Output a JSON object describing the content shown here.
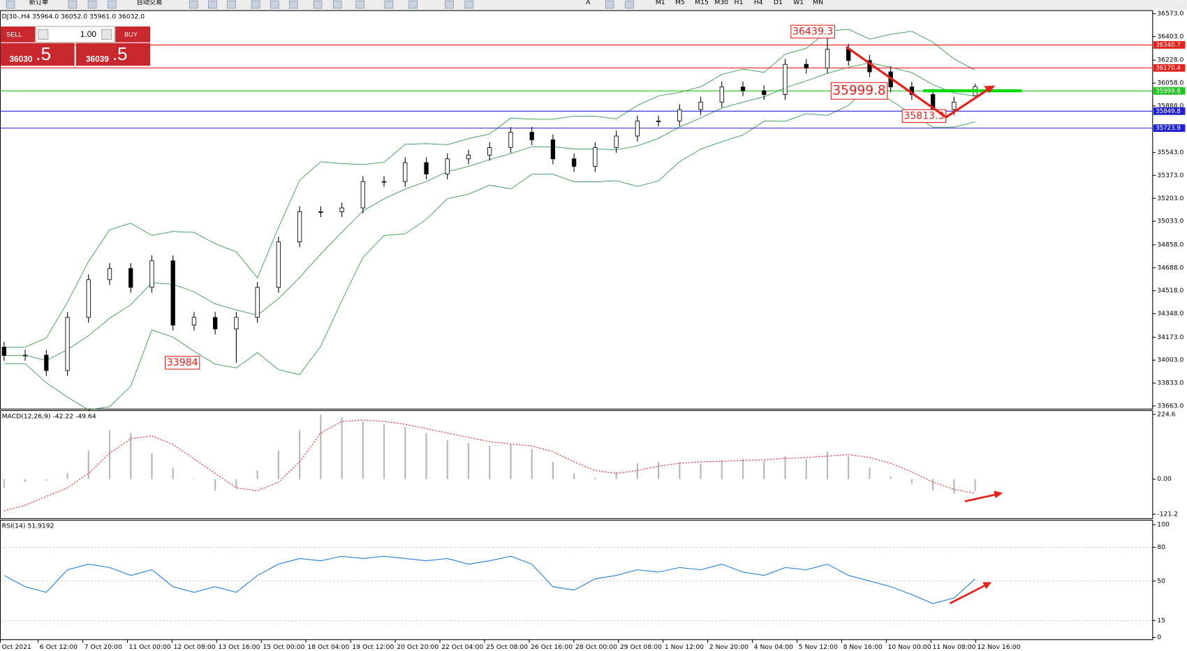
{
  "toolbar": {
    "new_order": "新订单",
    "auto_trading": "自动交易",
    "text_tool": "A",
    "timeframes": [
      "M1",
      "M5",
      "M15",
      "M30",
      "H1",
      "H4",
      "D1",
      "W1",
      "MN"
    ]
  },
  "trade_panel": {
    "sell": "SELL",
    "buy": "BUY",
    "lots": "1.00",
    "bid_main": "36030",
    "bid_frac": ".5",
    "ask_main": "36039",
    "ask_frac": ".5"
  },
  "chart_data": [
    {
      "type": "candlestick",
      "title": "DJ30-,H4 35964.0 36052.0 35961.0 36032.0",
      "up_color": "#ffffff",
      "down_color": "#000000",
      "band_color": "#2e9a48",
      "open": [
        34100,
        34038,
        34040,
        33926,
        34320,
        34600,
        34683,
        34543,
        34740,
        34263,
        34320,
        34235,
        34320,
        34543,
        34880,
        35104,
        35104,
        35132,
        35328,
        35328,
        35468,
        35384,
        35496,
        35524,
        35580,
        35693,
        35637,
        35496,
        35440,
        35580,
        35665,
        35777,
        35777,
        35861,
        35917,
        36029,
        36001,
        35973,
        36197,
        36169,
        36309,
        36225,
        36141,
        36029,
        35973,
        35861,
        35964
      ],
      "high": [
        34140,
        34080,
        34080,
        34360,
        34640,
        34723,
        34723,
        34780,
        34780,
        34360,
        34360,
        34360,
        34583,
        34920,
        35144,
        35144,
        35172,
        35368,
        35368,
        35508,
        35508,
        35536,
        35564,
        35620,
        35733,
        35733,
        35677,
        35536,
        35620,
        35705,
        35817,
        35817,
        35901,
        35957,
        36069,
        36069,
        36041,
        36237,
        36237,
        36439.3,
        36349,
        36265,
        36181,
        36069,
        36013,
        35957,
        36052
      ],
      "low": [
        33998,
        33998,
        33886,
        33886,
        34280,
        34560,
        34503,
        34503,
        34223,
        34223,
        34195,
        33984,
        34280,
        34503,
        34840,
        35064,
        35064,
        35092,
        35288,
        35288,
        35344,
        35344,
        35456,
        35484,
        35540,
        35597,
        35456,
        35400,
        35400,
        35540,
        35625,
        35737,
        35737,
        35821,
        35877,
        35961,
        35933,
        35933,
        36129,
        36129,
        36185,
        36101,
        35989,
        35933,
        35813.3,
        35821,
        35961
      ],
      "close": [
        34038,
        34040,
        33926,
        34320,
        34600,
        34683,
        34543,
        34740,
        34263,
        34320,
        34235,
        34320,
        34543,
        34880,
        35104,
        35104,
        35132,
        35328,
        35328,
        35468,
        35384,
        35496,
        35524,
        35580,
        35693,
        35637,
        35496,
        35440,
        35580,
        35665,
        35777,
        35777,
        35861,
        35917,
        36029,
        36001,
        35973,
        36197,
        36169,
        36309,
        36225,
        36141,
        36029,
        35973,
        35861,
        35917,
        36032
      ],
      "levels": [
        {
          "value": 36340.7,
          "color": "#e8201a"
        },
        {
          "value": 36170.4,
          "color": "#e8201a"
        },
        {
          "value": 35999.8,
          "color": "#22c322"
        },
        {
          "value": 35849.8,
          "color": "#2020d0"
        },
        {
          "value": 35723.9,
          "color": "#2020d0"
        }
      ],
      "annotations": [
        {
          "value": 36439.3
        },
        {
          "value": 35999.8
        },
        {
          "value": 35813.3
        },
        {
          "value": 33984.0
        }
      ],
      "ylim": [
        33663,
        36573
      ],
      "yticks": [
        {
          "value": 36573,
          "label": "36573.0"
        },
        {
          "value": 36403,
          "label": "36403.0"
        },
        {
          "value": 36228,
          "label": "36228.0"
        },
        {
          "value": 36058,
          "label": "36058.0"
        },
        {
          "value": 35888,
          "label": "35888.0"
        },
        {
          "value": 35543,
          "label": "35543.0"
        },
        {
          "value": 35373,
          "label": "35373.0"
        },
        {
          "value": 35203,
          "label": "35203.0"
        },
        {
          "value": 35033,
          "label": "35033.0"
        },
        {
          "value": 34858,
          "label": "34858.0"
        },
        {
          "value": 34688,
          "label": "34688.0"
        },
        {
          "value": 34518,
          "label": "34518.0"
        },
        {
          "value": 34348,
          "label": "34348.0"
        },
        {
          "value": 34173,
          "label": "34173.0"
        },
        {
          "value": 34003,
          "label": "34003.0"
        },
        {
          "value": 33833,
          "label": "33833.0"
        },
        {
          "value": 33663,
          "label": "33663.0"
        }
      ]
    },
    {
      "type": "bar",
      "title": "MACD(12,26,9) -42.22 -49.64",
      "color": "#b8b8b8",
      "values": [
        -30,
        -10,
        -5,
        20,
        100,
        170,
        160,
        90,
        40,
        0,
        -40,
        -30,
        30,
        100,
        170,
        224,
        215,
        200,
        190,
        180,
        160,
        135,
        125,
        115,
        120,
        105,
        60,
        20,
        5,
        25,
        55,
        60,
        60,
        55,
        65,
        70,
        65,
        80,
        70,
        95,
        80,
        40,
        10,
        -15,
        -40,
        -50,
        -42.22
      ],
      "signal": {
        "color": "#e8201a",
        "values": [
          -110,
          -90,
          -60,
          -30,
          20,
          90,
          140,
          150,
          120,
          70,
          20,
          -30,
          -40,
          -10,
          60,
          160,
          200,
          205,
          200,
          190,
          175,
          160,
          145,
          130,
          122,
          115,
          95,
          60,
          30,
          20,
          30,
          45,
          55,
          60,
          62,
          65,
          67,
          72,
          75,
          80,
          85,
          75,
          55,
          25,
          -10,
          -35,
          -49.64
        ]
      },
      "ylim": [
        -121.2,
        224.6
      ],
      "yticks": [
        224.6,
        {
          "value": 0,
          "label": "0.00"
        },
        -121.2
      ]
    },
    {
      "type": "line",
      "title": "RSI(14) 51.9192",
      "color": "#1e7fe0",
      "values": [
        55,
        45,
        40,
        60,
        65,
        62,
        55,
        60,
        45,
        40,
        45,
        40,
        55,
        65,
        70,
        68,
        72,
        70,
        72,
        70,
        68,
        70,
        65,
        68,
        72,
        65,
        45,
        42,
        52,
        55,
        60,
        58,
        62,
        60,
        65,
        58,
        55,
        62,
        60,
        65,
        55,
        50,
        45,
        38,
        30,
        35,
        51.9192
      ],
      "ylim": [
        0,
        100
      ],
      "yticks": [
        100,
        80,
        50,
        15,
        0
      ],
      "grid": true
    }
  ],
  "time_axis": [
    "Oct 2021",
    "6 Oct 12:00",
    "7 Oct 20:00",
    "11 Oct 00:00",
    "12 Oct 08:00",
    "13 Oct 16:00",
    "15 Oct 00:00",
    "18 Oct 04:00",
    "19 Oct 12:00",
    "20 Oct 20:00",
    "22 Oct 04:00",
    "25 Oct 08:00",
    "26 Oct 16:00",
    "28 Oct 00:00",
    "29 Oct 08:00",
    "1 Nov 12:00",
    "2 Nov 20:00",
    "4 Nov 04:00",
    "5 Nov 12:00",
    "8 Nov 16:00",
    "10 Nov 00:00",
    "11 Nov 08:00",
    "12 Nov 16:00"
  ]
}
